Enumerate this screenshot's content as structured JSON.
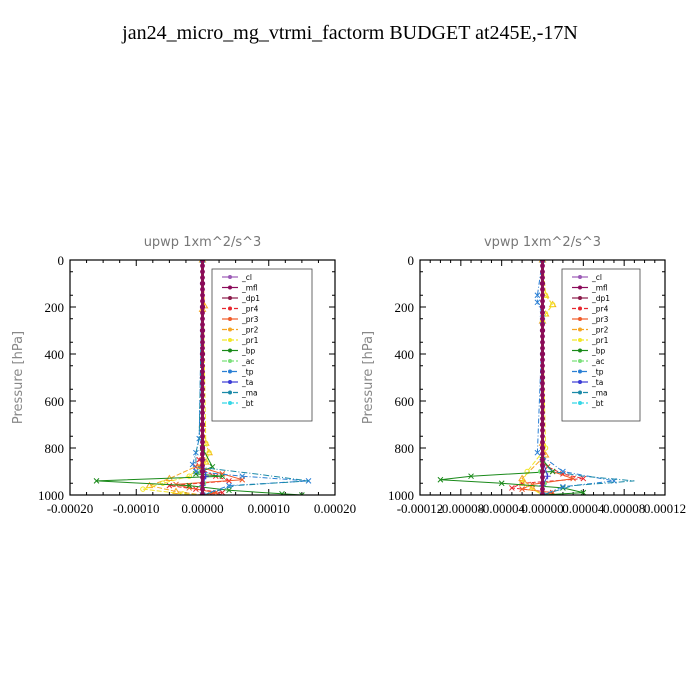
{
  "page": {
    "title": "jan24_micro_mg_vtrmi_factorm  BUDGET at245E,-17N"
  },
  "legend_colors": {
    "_cl": "#9b59b6",
    "_mfl": "#8b0a5a",
    "_dp1": "#8b1a4a",
    "_pr4": "#e8262e",
    "_pr3": "#f05a28",
    "_pr2": "#f5a623",
    "_pr1": "#f2e627",
    "_bp": "#1a8a1a",
    "_ac": "#7be07b",
    "_tp": "#2a7fd4",
    "_ta": "#3b3bd6",
    "_ma": "#1a8aa8",
    "_bt": "#35d7e6"
  },
  "chart_data": [
    {
      "type": "line",
      "title": "upwp   1xm^2/s^3",
      "ylabel": "Pressure [hPa]",
      "xlabel": "",
      "xlim": [
        -0.0002,
        0.0002
      ],
      "ylim": [
        1000,
        0
      ],
      "x_ticks": [
        "-0.00020",
        "-0.00010",
        "0.00000",
        "0.00010",
        "0.00020"
      ],
      "y_ticks": [
        "0",
        "200",
        "400",
        "600",
        "800",
        "1000"
      ],
      "legend": [
        "_cl",
        "_mfl",
        "_dp1",
        "_pr4",
        "_pr3",
        "_pr2",
        "_pr1",
        "_bp",
        "_ac",
        "_tp",
        "_ta",
        "_ma",
        "_bt"
      ],
      "legend_position": "top-right",
      "series": [
        {
          "name": "_cl",
          "x": [
            0,
            0,
            0,
            0,
            0,
            0,
            0,
            0,
            0,
            0,
            0
          ],
          "y": [
            0,
            100,
            200,
            300,
            400,
            500,
            600,
            700,
            800,
            900,
            1000
          ]
        },
        {
          "name": "_mfl",
          "x": [
            0,
            0,
            0,
            0,
            0,
            0,
            0,
            0,
            0,
            0,
            0
          ],
          "y": [
            0,
            100,
            200,
            300,
            400,
            500,
            600,
            700,
            800,
            900,
            1000
          ]
        },
        {
          "name": "_dp1",
          "x": [
            0,
            0,
            0,
            0,
            0,
            0,
            0,
            0,
            0,
            0,
            0
          ],
          "y": [
            0,
            100,
            200,
            300,
            400,
            500,
            600,
            700,
            800,
            900,
            1000
          ]
        },
        {
          "name": "_pr4",
          "x": [
            0,
            0,
            -5e-06,
            -1e-05,
            2e-05,
            4e-05,
            -5e-05,
            -1e-05,
            3e-05,
            0
          ],
          "y": [
            0,
            800,
            850,
            880,
            920,
            940,
            960,
            975,
            990,
            1000
          ]
        },
        {
          "name": "_pr3",
          "x": [
            0,
            0,
            -5e-06,
            3e-05,
            6e-05,
            -4e-05,
            -2e-05,
            2e-05,
            0
          ],
          "y": [
            0,
            850,
            880,
            910,
            935,
            955,
            970,
            990,
            1000
          ]
        },
        {
          "name": "_pr2",
          "x": [
            0,
            3e-06,
            0,
            0,
            5e-06,
            1e-05,
            5e-06,
            -5e-05,
            -8e-05,
            -4e-05,
            0
          ],
          "y": [
            0,
            195,
            210,
            700,
            780,
            820,
            860,
            930,
            960,
            985,
            1000
          ]
        },
        {
          "name": "_pr1",
          "x": [
            0,
            5e-06,
            1e-05,
            5e-06,
            -2e-05,
            -6e-05,
            -9e-05,
            -3e-05,
            0
          ],
          "y": [
            0,
            780,
            820,
            860,
            920,
            950,
            975,
            995,
            1000
          ]
        },
        {
          "name": "_bp",
          "x": [
            0,
            0,
            1.5e-05,
            -1e-05,
            3e-05,
            -0.00016,
            -2e-05,
            4e-05,
            0.00012,
            0.00015
          ],
          "y": [
            0,
            800,
            880,
            910,
            920,
            940,
            960,
            980,
            995,
            1000
          ]
        },
        {
          "name": "_ac",
          "x": [
            0,
            0,
            -2e-06,
            2e-06,
            0
          ],
          "y": [
            0,
            850,
            900,
            950,
            1000
          ]
        },
        {
          "name": "_tp",
          "x": [
            0,
            -5e-06,
            -1e-05,
            -1.5e-05,
            -1e-05,
            6e-05,
            0.00016,
            4e-05,
            0
          ],
          "y": [
            0,
            760,
            820,
            870,
            900,
            920,
            940,
            960,
            1000
          ]
        },
        {
          "name": "_ta",
          "x": [
            0,
            0,
            5e-06,
            0,
            0
          ],
          "y": [
            0,
            850,
            920,
            960,
            1000
          ]
        },
        {
          "name": "_ma",
          "x": [
            0,
            -5e-06,
            -1e-05,
            -1e-05,
            8e-05,
            0.00016,
            5e-05,
            0
          ],
          "y": [
            0,
            760,
            820,
            880,
            910,
            940,
            960,
            1000
          ]
        },
        {
          "name": "_bt",
          "x": [
            0,
            0,
            0,
            0,
            0,
            0,
            0,
            0,
            0,
            0,
            0
          ],
          "y": [
            0,
            100,
            200,
            300,
            400,
            500,
            600,
            700,
            800,
            900,
            1000
          ]
        }
      ]
    },
    {
      "type": "line",
      "title": "vpwp   1xm^2/s^3",
      "ylabel": "Pressure [hPa]",
      "xlabel": "",
      "xlim": [
        -0.00012,
        0.00012
      ],
      "ylim": [
        1000,
        0
      ],
      "x_ticks": [
        "-0.00012",
        "-0.00008",
        "-0.00004",
        "0.00000",
        "0.00004",
        "0.00008",
        "0.00012"
      ],
      "y_ticks": [
        "0",
        "200",
        "400",
        "600",
        "800",
        "1000"
      ],
      "legend": [
        "_cl",
        "_mfl",
        "_dp1",
        "_pr4",
        "_pr3",
        "_pr2",
        "_pr1",
        "_bp",
        "_ac",
        "_tp",
        "_ta",
        "_ma",
        "_bt"
      ],
      "legend_position": "top-right",
      "series": [
        {
          "name": "_cl",
          "x": [
            0,
            0,
            0,
            0,
            0,
            0,
            0,
            0,
            0,
            0,
            0
          ],
          "y": [
            0,
            100,
            200,
            300,
            400,
            500,
            600,
            700,
            800,
            900,
            1000
          ]
        },
        {
          "name": "_mfl",
          "x": [
            0,
            0,
            0,
            0,
            0,
            0,
            0,
            0,
            0,
            0,
            0
          ],
          "y": [
            0,
            100,
            200,
            300,
            400,
            500,
            600,
            700,
            800,
            900,
            1000
          ]
        },
        {
          "name": "_dp1",
          "x": [
            0,
            0,
            0,
            0,
            0,
            0,
            0,
            0,
            0,
            0,
            0
          ],
          "y": [
            0,
            100,
            200,
            300,
            400,
            500,
            600,
            700,
            800,
            900,
            1000
          ]
        },
        {
          "name": "_pr4",
          "x": [
            0,
            0,
            5e-06,
            2e-05,
            4e-05,
            -2e-05,
            -3e-05,
            1e-05,
            0
          ],
          "y": [
            0,
            850,
            880,
            910,
            930,
            950,
            970,
            990,
            1000
          ]
        },
        {
          "name": "_pr3",
          "x": [
            0,
            0,
            1e-05,
            3e-05,
            -1e-05,
            -2e-05,
            1e-05,
            0
          ],
          "y": [
            0,
            860,
            900,
            930,
            955,
            975,
            990,
            1000
          ]
        },
        {
          "name": "_pr2",
          "x": [
            0,
            3e-06,
            1e-05,
            3e-06,
            0,
            0,
            3e-06,
            -2e-05,
            -1e-05,
            0
          ],
          "y": [
            0,
            150,
            190,
            230,
            260,
            780,
            830,
            930,
            970,
            1000
          ]
        },
        {
          "name": "_pr1",
          "x": [
            0,
            3e-06,
            1e-05,
            3e-06,
            0,
            3e-06,
            -1.5e-05,
            -2e-05,
            0
          ],
          "y": [
            0,
            150,
            190,
            230,
            260,
            800,
            900,
            950,
            1000
          ]
        },
        {
          "name": "_bp",
          "x": [
            0,
            0,
            1e-05,
            -7e-05,
            -0.0001,
            -4e-05,
            2e-05,
            4e-05,
            0
          ],
          "y": [
            0,
            850,
            900,
            920,
            935,
            950,
            970,
            990,
            1000
          ]
        },
        {
          "name": "_ac",
          "x": [
            0,
            0,
            -2e-06,
            2e-06,
            0
          ],
          "y": [
            0,
            850,
            900,
            950,
            1000
          ]
        },
        {
          "name": "_tp",
          "x": [
            0,
            -5e-06,
            -5e-06,
            0,
            0,
            -5e-06,
            2e-05,
            7e-05,
            2e-05,
            0
          ],
          "y": [
            0,
            150,
            180,
            230,
            260,
            820,
            900,
            940,
            965,
            1000
          ]
        },
        {
          "name": "_ta",
          "x": [
            0,
            0,
            5e-06,
            0,
            0
          ],
          "y": [
            0,
            850,
            920,
            960,
            1000
          ]
        },
        {
          "name": "_ma",
          "x": [
            0,
            0,
            1e-05,
            4e-05,
            9e-05,
            3e-05,
            0
          ],
          "y": [
            0,
            860,
            900,
            920,
            940,
            960,
            1000
          ]
        },
        {
          "name": "_bt",
          "x": [
            0,
            0,
            0,
            0,
            0,
            0,
            0,
            0,
            0,
            0,
            0
          ],
          "y": [
            0,
            100,
            200,
            300,
            400,
            500,
            600,
            700,
            800,
            900,
            1000
          ]
        }
      ]
    }
  ]
}
